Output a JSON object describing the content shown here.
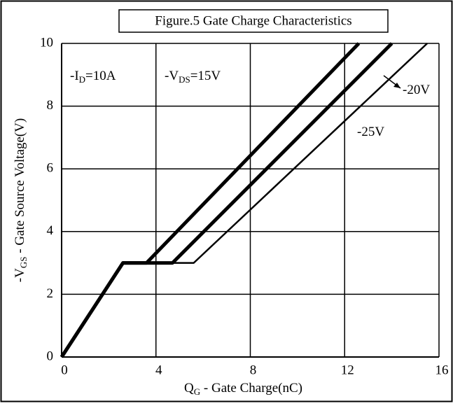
{
  "chart_data": {
    "type": "line",
    "title": "Figure.5 Gate Charge Characteristics",
    "x_label": {
      "main": "Q",
      "sub": "G",
      "rest": " - Gate Charge(nC)"
    },
    "y_label": {
      "main": "-V",
      "sub": "GS",
      "rest": " - Gate Source Voltage(V)"
    },
    "xlim": [
      0,
      16
    ],
    "ylim": [
      0,
      10
    ],
    "xticks": [
      0,
      4,
      8,
      12,
      16
    ],
    "yticks": [
      0,
      2,
      4,
      6,
      8,
      10
    ],
    "grid": true,
    "series": [
      {
        "color": "#000000",
        "width": 5,
        "x": [
          0,
          2.6,
          3.6,
          12.6
        ],
        "values": [
          0,
          3,
          3,
          10
        ]
      },
      {
        "color": "#000000",
        "width": 5,
        "x": [
          0,
          2.6,
          4.7,
          14.0
        ],
        "values": [
          0,
          3,
          3,
          10
        ]
      },
      {
        "color": "#000000",
        "width": 2.5,
        "x": [
          0,
          2.6,
          5.6,
          15.5
        ],
        "values": [
          0,
          3,
          3,
          10
        ]
      }
    ],
    "annotations": [
      {
        "main": "-I",
        "sub": "D",
        "rest": "=10A"
      },
      {
        "main": "-V",
        "sub": "DS",
        "rest": "=15V"
      },
      {
        "main": "-20V"
      },
      {
        "main": "-25V"
      }
    ]
  }
}
